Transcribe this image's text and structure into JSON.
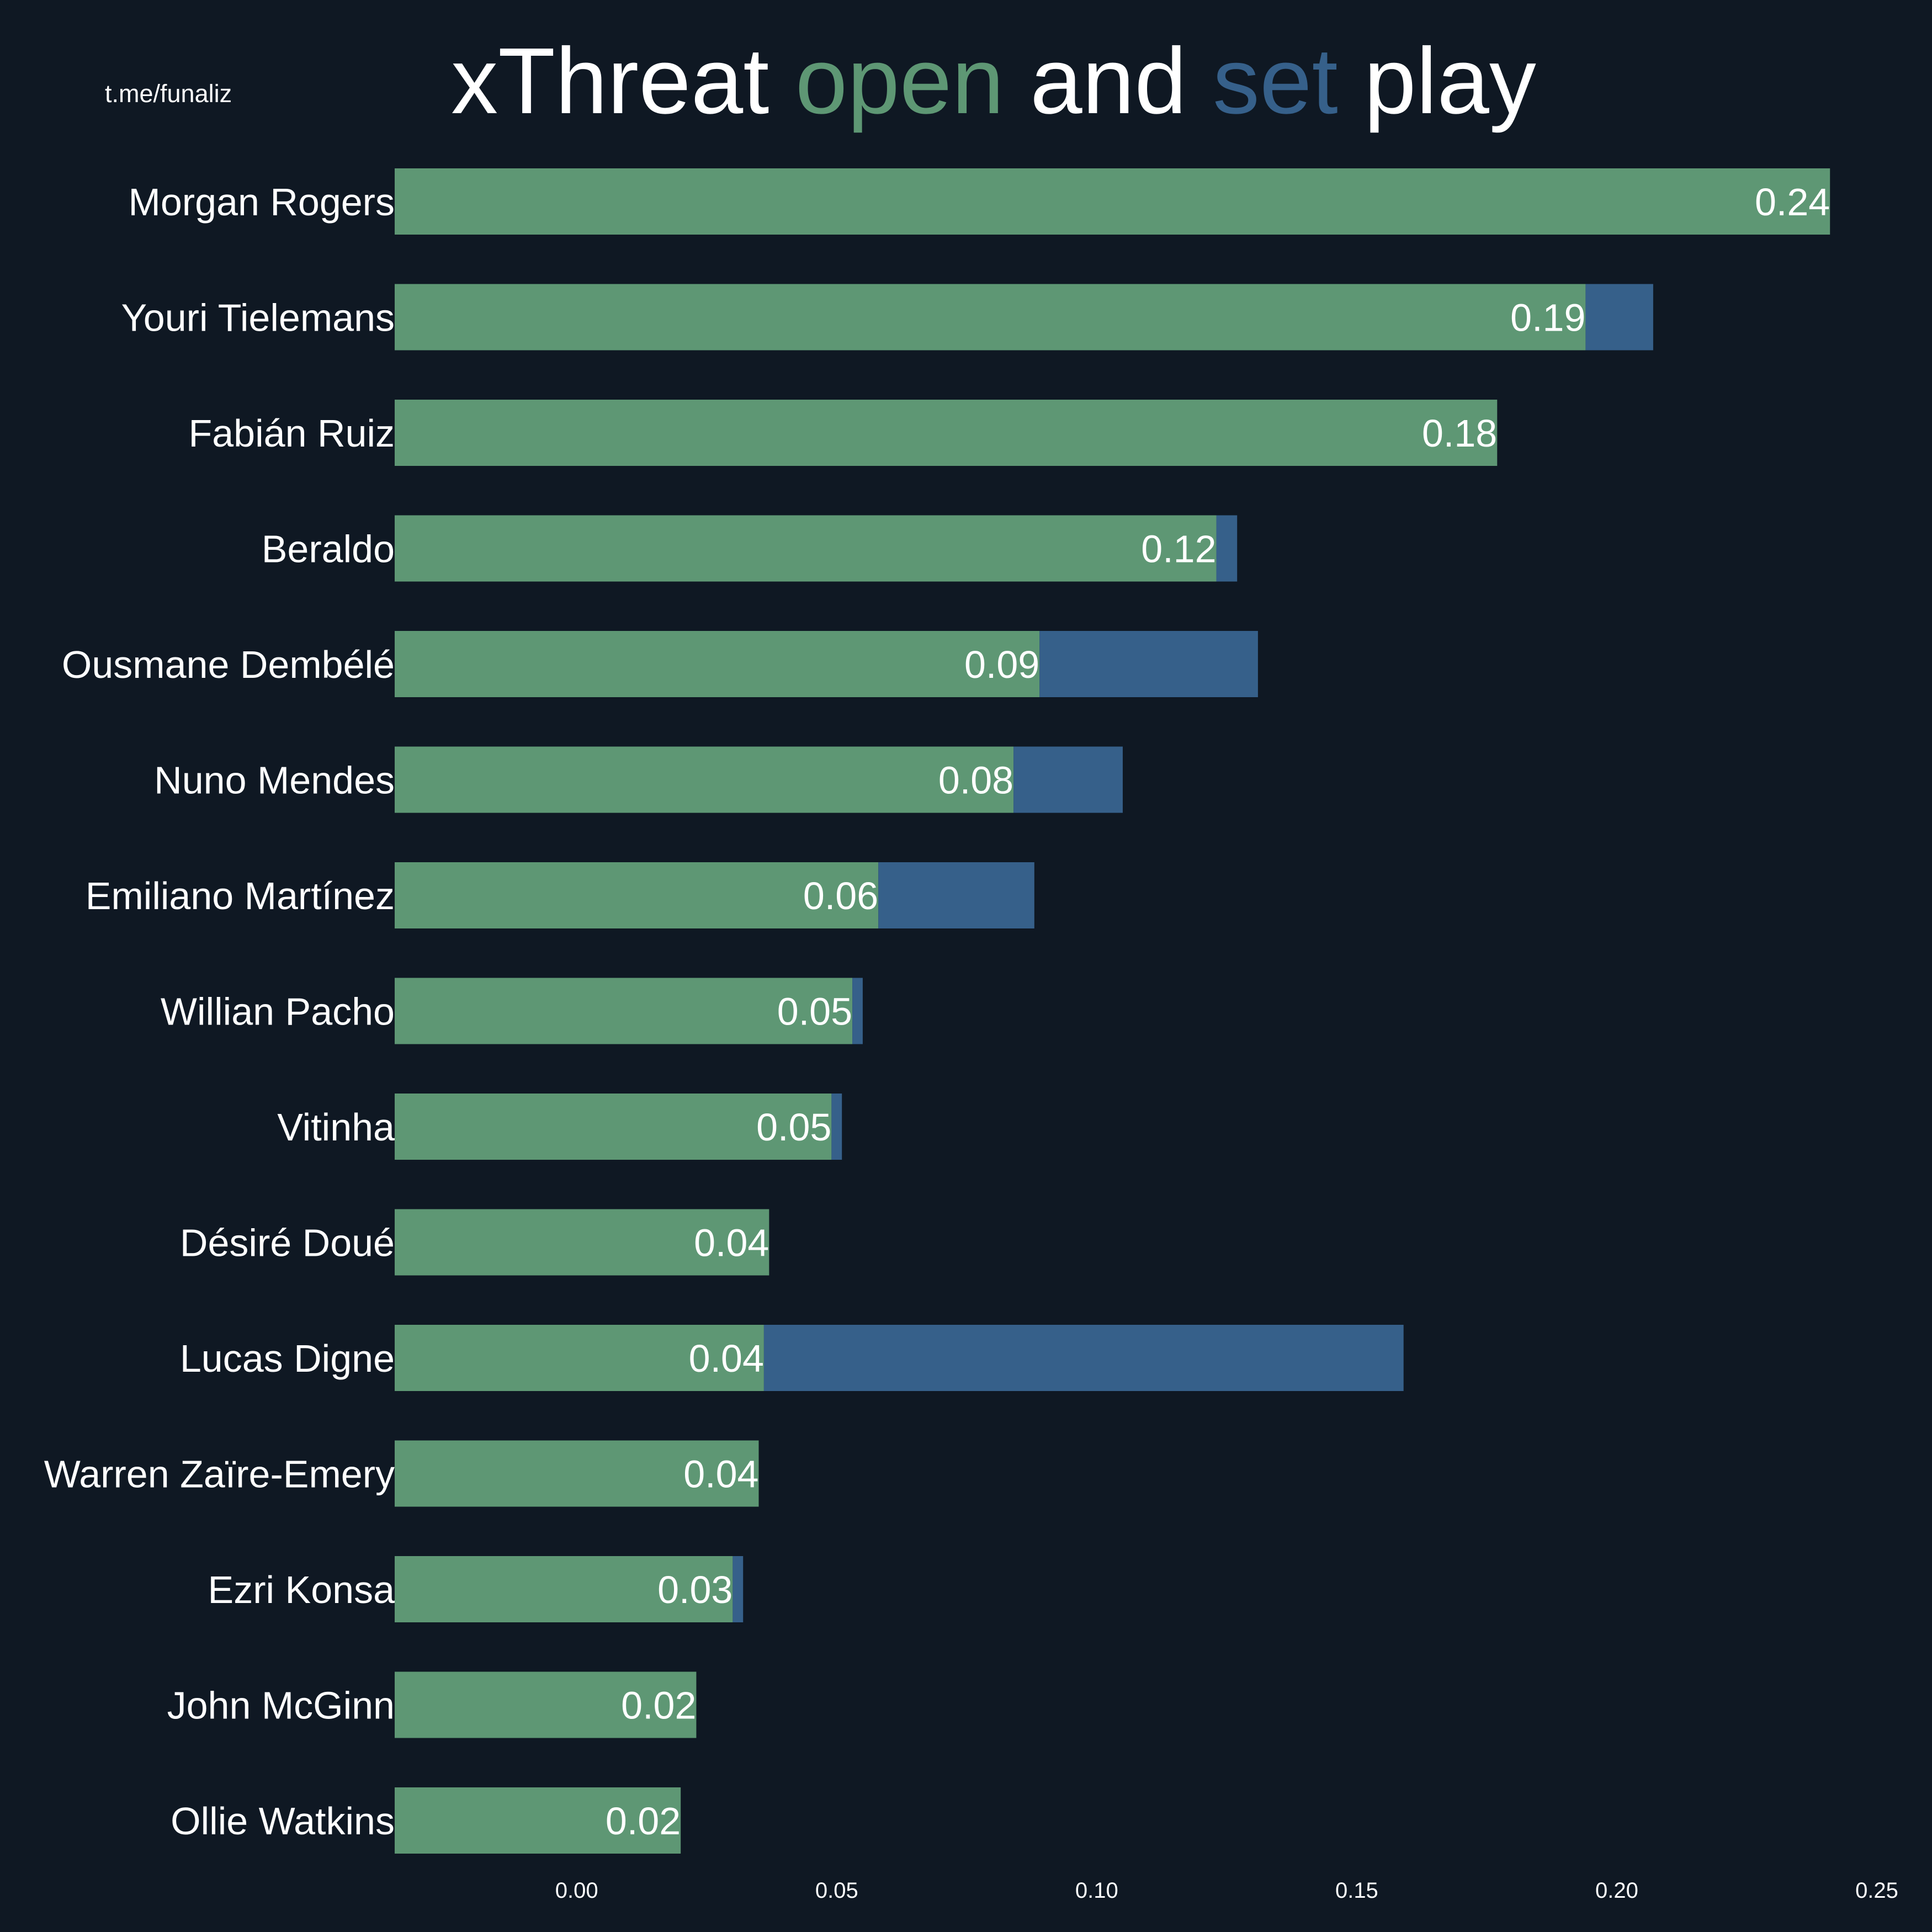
{
  "credit": "t.me/funaliz",
  "title": {
    "parts": [
      {
        "text": "xThreat ",
        "color": "#ffffff"
      },
      {
        "text": "open",
        "color": "#5e9774"
      },
      {
        "text": " and ",
        "color": "#ffffff"
      },
      {
        "text": "set",
        "color": "#36608a"
      },
      {
        "text": " play",
        "color": "#ffffff"
      }
    ]
  },
  "colors": {
    "background": "#0f1823",
    "open": "#5e9774",
    "set": "#36608a",
    "text": "#ffffff"
  },
  "chart_data": {
    "type": "bar",
    "orientation": "horizontal",
    "stacked": true,
    "title": "xThreat open and set play",
    "xlim": [
      -0.035,
      0.25
    ],
    "xticks": [
      "0.00",
      "0.05",
      "0.10",
      "0.15",
      "0.20",
      "0.25"
    ],
    "xtick_values": [
      0.0,
      0.05,
      0.1,
      0.15,
      0.2,
      0.25
    ],
    "grid": false,
    "categories": [
      "Morgan Rogers",
      "Youri Tielemans",
      "Fabián Ruiz",
      "Beraldo",
      "Ousmane Dembélé",
      "Nuno Mendes",
      "Emiliano Martínez",
      "Willian Pacho",
      "Vitinha",
      "Désiré Doué",
      "Lucas Digne",
      "Warren Zaïre-Emery",
      "Ezri Konsa",
      "John McGinn",
      "Ollie Watkins"
    ],
    "series": [
      {
        "key": "open",
        "color": "#5e9774",
        "values": [
          0.241,
          0.194,
          0.177,
          0.123,
          0.089,
          0.084,
          0.058,
          0.053,
          0.049,
          0.037,
          0.036,
          0.035,
          0.03,
          0.023,
          0.02
        ]
      },
      {
        "key": "set",
        "color": "#36608a",
        "values": [
          0.0,
          0.013,
          0.0,
          0.004,
          0.042,
          0.021,
          0.03,
          0.002,
          0.002,
          0.0,
          0.123,
          0.0,
          0.002,
          0.0,
          0.0
        ]
      }
    ],
    "value_labels": [
      "0.24",
      "0.19",
      "0.18",
      "0.12",
      "0.09",
      "0.08",
      "0.06",
      "0.05",
      "0.05",
      "0.04",
      "0.04",
      "0.04",
      "0.03",
      "0.02",
      "0.02"
    ]
  }
}
